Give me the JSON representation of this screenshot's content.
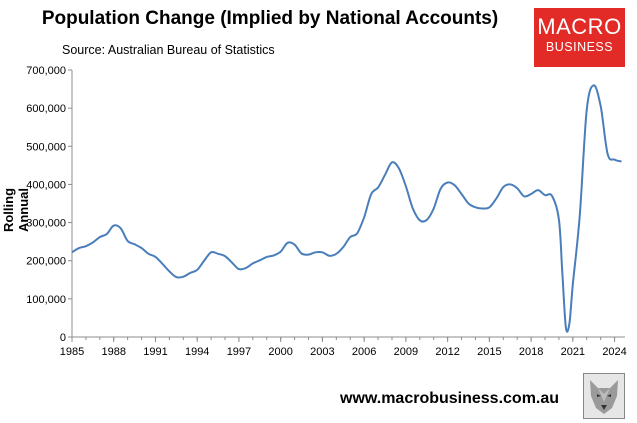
{
  "chart_data": {
    "type": "line",
    "title": "Population Change (Implied by National Accounts)",
    "source": "Source: Australian Bureau of Statistics",
    "ylabel": "Rolling Annual",
    "xlabel": "",
    "xlim": [
      1985,
      2024.75
    ],
    "ylim": [
      0,
      700000
    ],
    "grid": false,
    "x_ticks": [
      "1985",
      "1988",
      "1991",
      "1994",
      "1997",
      "2000",
      "2003",
      "2006",
      "2009",
      "2012",
      "2015",
      "2018",
      "2021",
      "2024"
    ],
    "y_ticks": [
      "0",
      "100,000",
      "200,000",
      "300,000",
      "400,000",
      "500,000",
      "600,000",
      "700,000"
    ],
    "series": [
      {
        "color": "#4a7ebb",
        "x": [
          1985,
          1985.5,
          1986,
          1986.5,
          1987,
          1987.5,
          1988,
          1988.5,
          1989,
          1989.5,
          1990,
          1990.5,
          1991,
          1991.5,
          1992,
          1992.5,
          1993,
          1993.5,
          1994,
          1994.5,
          1995,
          1995.5,
          1996,
          1996.5,
          1997,
          1997.5,
          1998,
          1998.5,
          1999,
          1999.5,
          2000,
          2000.5,
          2001,
          2001.5,
          2002,
          2002.5,
          2003,
          2003.5,
          2004,
          2004.5,
          2005,
          2005.5,
          2006,
          2006.5,
          2007,
          2007.5,
          2008,
          2008.5,
          2009,
          2009.5,
          2010,
          2010.5,
          2011,
          2011.5,
          2012,
          2012.5,
          2013,
          2013.5,
          2014,
          2014.5,
          2015,
          2015.5,
          2016,
          2016.5,
          2017,
          2017.5,
          2018,
          2018.5,
          2019,
          2019.5,
          2020,
          2020.25,
          2020.5,
          2020.75,
          2021,
          2021.5,
          2022,
          2022.5,
          2023,
          2023.5,
          2024,
          2024.5
        ],
        "values": [
          222000,
          233000,
          238000,
          248000,
          262000,
          270000,
          292000,
          285000,
          252000,
          243000,
          233000,
          218000,
          210000,
          192000,
          172000,
          157000,
          158000,
          168000,
          176000,
          200000,
          222000,
          218000,
          212000,
          195000,
          178000,
          181000,
          193000,
          201000,
          210000,
          214000,
          224000,
          247000,
          242000,
          219000,
          216000,
          222000,
          222000,
          213000,
          218000,
          236000,
          262000,
          272000,
          314000,
          374000,
          392000,
          425000,
          458000,
          442000,
          395000,
          337000,
          306000,
          307000,
          337000,
          389000,
          405000,
          398000,
          375000,
          350000,
          340000,
          337000,
          340000,
          363000,
          393000,
          400000,
          390000,
          369000,
          375000,
          385000,
          372000,
          370000,
          308000,
          165000,
          25000,
          35000,
          138000,
          320000,
          595000,
          660000,
          605000,
          480000,
          465000,
          460000
        ]
      }
    ]
  },
  "footer": {
    "url": "www.macrobusiness.com.au"
  },
  "logo": {
    "line1": "MACRO",
    "line2": "BUSINESS",
    "color": "#e22b26"
  }
}
